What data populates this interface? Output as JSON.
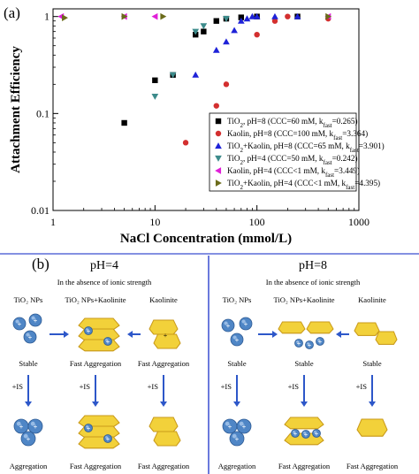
{
  "panel_a_label": "(a)",
  "panel_b_label": "(b)",
  "chart_data": {
    "type": "scatter",
    "title": "",
    "xlabel": "NaCl Concentration (mmol/L)",
    "ylabel": "Attachment Efficiency",
    "xscale": "log",
    "yscale": "log",
    "xlim": [
      1,
      1000
    ],
    "ylim": [
      0.01,
      1.2
    ],
    "xticks": [
      "1",
      "10",
      "100",
      "1000"
    ],
    "yticks": [
      "0.01",
      "0.1",
      "1"
    ],
    "grid": false,
    "legend_position": "bottom-right",
    "series": [
      {
        "name": "TiO2, pH=8 (CCC=60 mM, kfast=0.265)",
        "legend_prefix": "TiO",
        "legend_sub": "2",
        "legend_text": ", pH=8 (CCC=60 mM, k",
        "legend_ksub": "fast",
        "legend_tail": "=0.265)",
        "marker": "square",
        "color": "#000000",
        "x": [
          5,
          10,
          15,
          25,
          30,
          40,
          50,
          70,
          100,
          250
        ],
        "y": [
          0.08,
          0.22,
          0.25,
          0.65,
          0.7,
          0.9,
          0.95,
          0.98,
          1.0,
          1.0
        ]
      },
      {
        "name": "Kaolin, pH=8 (CCC=100 mM, kfast=3.364)",
        "legend_prefix": "Kaolin",
        "legend_sub": "",
        "legend_text": ", pH=8 (CCC=100 mM, k",
        "legend_ksub": "fast",
        "legend_tail": "=3.364)",
        "marker": "circle",
        "color": "#d32f2f",
        "x": [
          20,
          40,
          50,
          100,
          150,
          200,
          500
        ],
        "y": [
          0.05,
          0.12,
          0.2,
          0.65,
          0.9,
          1.0,
          0.95
        ]
      },
      {
        "name": "TiO2+Kaolin, pH=8 (CCC=65 mM, kfast=3.901)",
        "legend_prefix": "TiO",
        "legend_sub": "2",
        "legend_text": "+Kaolin, pH=8 (CCC=65 mM, k",
        "legend_ksub": "fast",
        "legend_tail": "=3.901)",
        "marker": "triangle-up",
        "color": "#1e22d8",
        "x": [
          25,
          40,
          50,
          60,
          70,
          80,
          90,
          100,
          150,
          250
        ],
        "y": [
          0.25,
          0.45,
          0.55,
          0.72,
          0.9,
          0.95,
          1.0,
          1.0,
          1.0,
          1.0
        ]
      },
      {
        "name": "TiO2, pH=4 (CCC=50 mM, kfast=0.242)",
        "legend_prefix": "TiO",
        "legend_sub": "2",
        "legend_text": ", pH=4 (CCC=50 mM, k",
        "legend_ksub": "fast",
        "legend_tail": "=0.242)",
        "marker": "triangle-down",
        "color": "#3d8b8b",
        "x": [
          10,
          15,
          25,
          30,
          50
        ],
        "y": [
          0.15,
          0.25,
          0.7,
          0.8,
          0.95
        ]
      },
      {
        "name": "Kaolin, pH=4 (CCC<1 mM, kfast=3.449)",
        "legend_prefix": "Kaolin",
        "legend_sub": "",
        "legend_text": ", pH=4 (CCC<1 mM, k",
        "legend_ksub": "fast",
        "legend_tail": "=3.449)",
        "marker": "triangle-left",
        "color": "#e020d8",
        "x": [
          1.2,
          5,
          10,
          500
        ],
        "y": [
          1.0,
          1.0,
          1.0,
          1.0
        ]
      },
      {
        "name": "TiO2+Kaolin, pH=4 (CCC<1 mM, kfast=4.395)",
        "legend_prefix": "TiO",
        "legend_sub": "2",
        "legend_text": "+Kaolin, pH=4 (CCC<1 mM, k",
        "legend_ksub": "fast",
        "legend_tail": "=4.395)",
        "marker": "triangle-right",
        "color": "#6b6b1a",
        "x": [
          1.3,
          5,
          12,
          500
        ],
        "y": [
          0.97,
          1.0,
          1.0,
          1.0
        ]
      }
    ]
  },
  "schematic": {
    "left": {
      "title": "pH=4",
      "subtitle": "In the absence of ionic strength",
      "col_labels": [
        "TiO₂ NPs",
        "TiO₂ NPs+Kaolinite",
        "Kaolinite"
      ],
      "row1_states": [
        "Stable",
        "Fast Aggregation",
        "Fast Aggregation"
      ],
      "ionic_labels": [
        "+IS",
        "+IS",
        "+IS"
      ],
      "row2_states": [
        "Aggregation",
        "Fast Aggregation",
        "Fast Aggregation"
      ]
    },
    "right": {
      "title": "pH=8",
      "subtitle": "In the absence of ionic strength",
      "col_labels": [
        "TiO₂ NPs",
        "TiO₂ NPs+Kaolinite",
        "Kaolinite"
      ],
      "row1_states": [
        "Stable",
        "Stable",
        "Stable"
      ],
      "ionic_labels": [
        "+IS",
        "+IS",
        "+IS"
      ],
      "row2_states": [
        "Aggregation",
        "Fast Aggregation",
        "Fast Aggregation"
      ]
    }
  },
  "colors": {
    "nanoparticle": "#4f86c6",
    "kaolinite": "#f2d13a",
    "kaolinite_edge": "#c99a1a",
    "arrow": "#2d57c9",
    "divider": "#3a4fd0"
  }
}
